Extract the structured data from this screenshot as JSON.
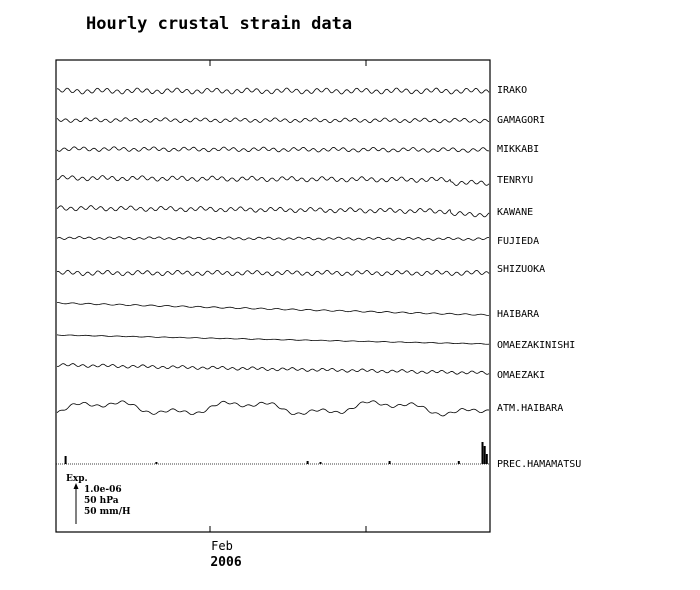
{
  "chart_data": {
    "type": "line",
    "title": "Hourly crustal strain data",
    "x_tick_month": "Feb",
    "x_tick_year": "2006",
    "series": [
      {
        "name": "IRAKO",
        "pattern": "wavy",
        "amp": 2.0,
        "trend": 0.0,
        "step": 0
      },
      {
        "name": "GAMAGORI",
        "pattern": "wavy",
        "amp": 1.6,
        "trend": 0.5,
        "step": 0
      },
      {
        "name": "MIKKABI",
        "pattern": "wavy",
        "amp": 1.6,
        "trend": 1.0,
        "step": 0
      },
      {
        "name": "TENRYU",
        "pattern": "wavy",
        "amp": 1.8,
        "trend": 2.0,
        "step": 3
      },
      {
        "name": "KAWANE",
        "pattern": "wavy",
        "amp": 1.8,
        "trend": 3.5,
        "step": 3
      },
      {
        "name": "FUJIEDA",
        "pattern": "wavy",
        "amp": 1.0,
        "trend": 1.0,
        "step": 0
      },
      {
        "name": "SHIZUOKA",
        "pattern": "wavy",
        "amp": 1.8,
        "trend": 0.0,
        "step": 0
      },
      {
        "name": "HAIBARA",
        "pattern": "smooth",
        "amp": 0.6,
        "trend": 12.0,
        "step": 0
      },
      {
        "name": "OMAEZAKINISHI",
        "pattern": "smooth",
        "amp": 0.3,
        "trend": 9.0,
        "step": 0
      },
      {
        "name": "OMAEZAKI",
        "pattern": "wavy",
        "amp": 1.2,
        "trend": 8.0,
        "step": 0
      },
      {
        "name": "ATM.HAIBARA",
        "pattern": "pressure",
        "amp": 8.0,
        "trend": 0.0,
        "step": 0
      },
      {
        "name": "PREC.HAMAMATSU",
        "pattern": "precip",
        "amp": 0.0,
        "trend": 0.0,
        "step": 0
      }
    ],
    "precip_events": [
      {
        "t": 0.02,
        "h": 8
      },
      {
        "t": 0.23,
        "h": 2
      },
      {
        "t": 0.58,
        "h": 3
      },
      {
        "t": 0.61,
        "h": 2
      },
      {
        "t": 0.77,
        "h": 3
      },
      {
        "t": 0.93,
        "h": 3
      },
      {
        "t": 0.985,
        "h": 22
      },
      {
        "t": 0.99,
        "h": 18
      },
      {
        "t": 0.995,
        "h": 10
      }
    ],
    "scale_legend": {
      "title": "Exp.",
      "lines": [
        "1.0e-06",
        "50 hPa",
        "50 mm/H"
      ]
    }
  }
}
